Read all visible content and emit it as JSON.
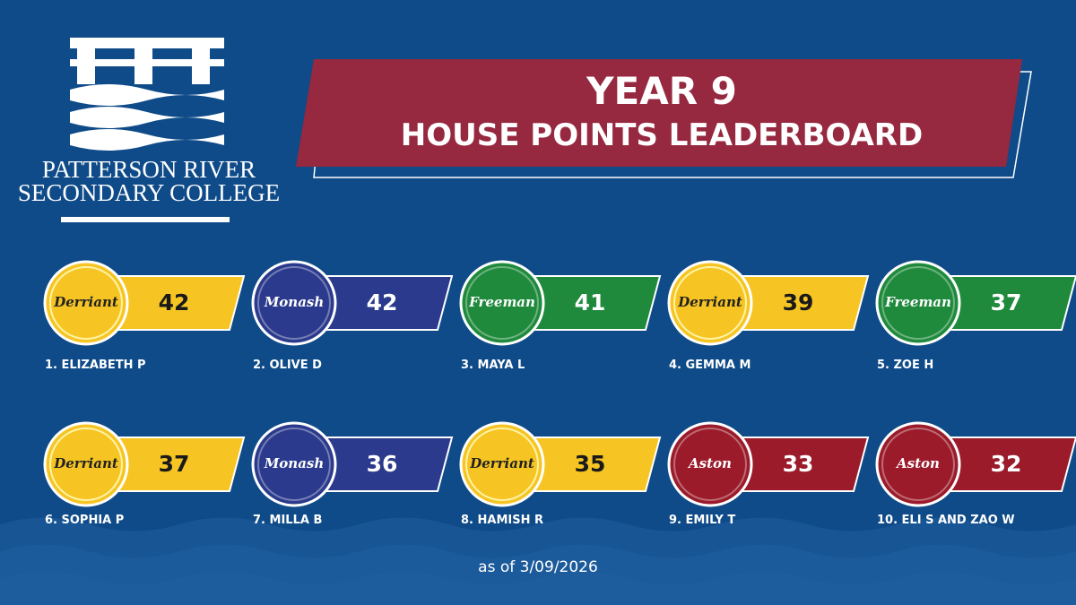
{
  "logo": {
    "line1": "PATTERSON RIVER",
    "line2": "SECONDARY COLLEGE"
  },
  "banner": {
    "title": "YEAR 9",
    "subtitle": "HOUSE POINTS LEADERBOARD"
  },
  "entries": [
    {
      "name": "1.  ELIZABETH P",
      "house": "Derriant",
      "color": "#f6c523",
      "points": 42
    },
    {
      "name": "2. OLIVE D",
      "house": "Monash",
      "color": "#2b3a8c",
      "points": 42
    },
    {
      "name": "3. MAYA L",
      "house": "Freeman",
      "color": "#1f8a3c",
      "points": 41
    },
    {
      "name": "4. GEMMA M",
      "house": "Derriant",
      "color": "#f6c523",
      "points": 39
    },
    {
      "name": "5.  ZOE H",
      "house": "Freeman",
      "color": "#1f8a3c",
      "points": 37
    },
    {
      "name": "6. SOPHIA P",
      "house": "Derriant",
      "color": "#f6c523",
      "points": 37
    },
    {
      "name": "7. MILLA B",
      "house": "Monash",
      "color": "#2b3a8c",
      "points": 36
    },
    {
      "name": "8.  HAMISH R",
      "house": "Derriant",
      "color": "#f6c523",
      "points": 35
    },
    {
      "name": "9.  EMILY T",
      "house": "Aston",
      "color": "#9b1b2a",
      "points": 33
    },
    {
      "name": "10. ELI S AND ZAO W",
      "house": "Aston",
      "color": "#9b1b2a",
      "points": 32
    }
  ],
  "footer": "as of 3/09/2026"
}
